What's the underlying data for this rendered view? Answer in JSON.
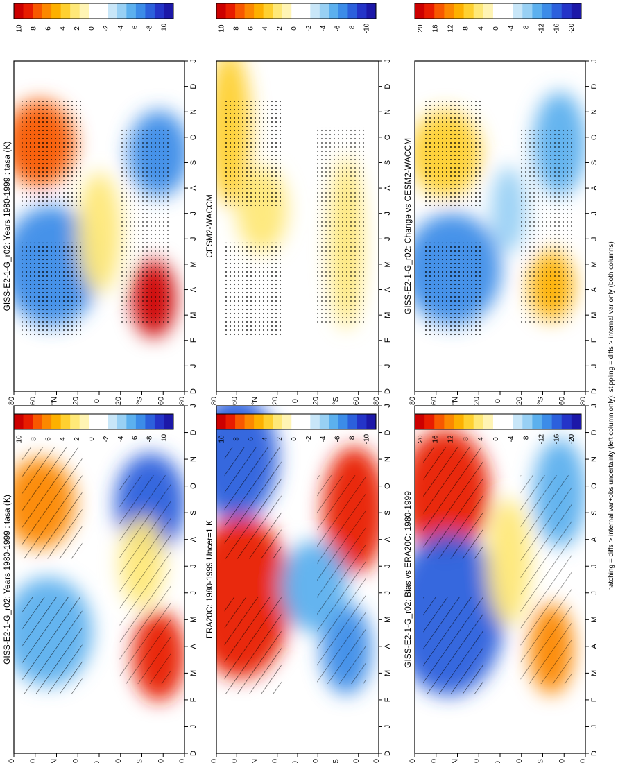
{
  "figure": {
    "footnote": "hatching = diffs > internal var+obs uncertainty (left column only); stippling = diffs > internal var only (both columns)"
  },
  "months": [
    "D",
    "J",
    "F",
    "M",
    "A",
    "M",
    "J",
    "J",
    "A",
    "S",
    "O",
    "N",
    "D",
    "J"
  ],
  "lat_ticks": [
    "80",
    "60",
    "°N",
    "20",
    "0",
    "20",
    "°S",
    "60",
    "80"
  ],
  "palettes": {
    "ten": [
      "#cc0000",
      "#e81c00",
      "#f85800",
      "#fc8800",
      "#fdb000",
      "#fed030",
      "#fee878",
      "#fff4b4",
      "#ffffff",
      "#ffffff",
      "#c8e6f8",
      "#98d0f4",
      "#5cb0ee",
      "#3c8ce8",
      "#2c60dc",
      "#2434c8",
      "#1c18a8"
    ],
    "twenty": [
      "#cc0000",
      "#e81c00",
      "#f85800",
      "#fc8800",
      "#fdb000",
      "#fed030",
      "#fee878",
      "#fff4b4",
      "#ffffff",
      "#ffffff",
      "#c8e6f8",
      "#98d0f4",
      "#5cb0ee",
      "#3c8ce8",
      "#2c60dc",
      "#2434c8",
      "#1c18a8"
    ]
  },
  "chart_data": [
    {
      "type": "heatmap",
      "title": "GISS-E2-1-G_r02: Years 1980-1999 : tasa (K)",
      "ylabel": "",
      "xlabel": "",
      "colorbar_labels": [
        "10",
        "8",
        "6",
        "4",
        "2",
        "0",
        "-2",
        "-4",
        "-6",
        "-8",
        "-10"
      ],
      "clim": [
        -10,
        10
      ],
      "overlay": "hatching"
    },
    {
      "type": "heatmap",
      "title": "GISS-E2-1-G_r02: Years 1980-1999 : tasa (K)",
      "colorbar_labels": [
        "10",
        "8",
        "6",
        "4",
        "2",
        "0",
        "-2",
        "-4",
        "-6",
        "-8",
        "-10"
      ],
      "clim": [
        -10,
        10
      ],
      "overlay": "stippling"
    },
    {
      "type": "heatmap",
      "title": "ERA20C: 1980-1999 Uncer=1 K",
      "colorbar_labels": [
        "10",
        "8",
        "6",
        "4",
        "2",
        "0",
        "-2",
        "-4",
        "-6",
        "-8",
        "-10"
      ],
      "clim": [
        -10,
        10
      ],
      "overlay": "hatching"
    },
    {
      "type": "heatmap",
      "title": "CESM2-WACCM",
      "colorbar_labels": [
        "10",
        "8",
        "6",
        "4",
        "2",
        "0",
        "-2",
        "-4",
        "-6",
        "-8",
        "-10"
      ],
      "clim": [
        -10,
        10
      ],
      "overlay": "stippling"
    },
    {
      "type": "heatmap",
      "title": "GISS-E2-1-G_r02: Bias vs ERA20C: 1980-1999",
      "colorbar_labels": [
        "20",
        "16",
        "12",
        "8",
        "4",
        "0",
        "-4",
        "-8",
        "-12",
        "-16",
        "-20"
      ],
      "clim": [
        -20,
        20
      ],
      "overlay": "hatching"
    },
    {
      "type": "heatmap",
      "title": "GISS-E2-1-G_r02: Change vs CESM2-WACCM",
      "colorbar_labels": [
        "20",
        "16",
        "12",
        "8",
        "4",
        "0",
        "-4",
        "-8",
        "-12",
        "-16",
        "-20"
      ],
      "clim": [
        -20,
        20
      ],
      "overlay": "stippling"
    }
  ]
}
